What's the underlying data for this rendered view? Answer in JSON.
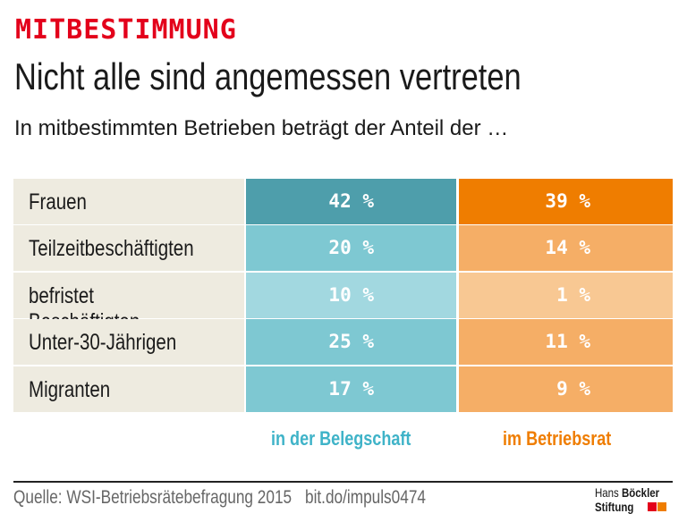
{
  "kicker": "MITBESTIMMUNG",
  "title": "Nicht alle sind angemessen vertreten",
  "subtitle": "In mitbestimmten Betrieben beträgt der Anteil der …",
  "chart_data": {
    "type": "table",
    "categories": [
      "Frauen",
      "Teilzeitbeschäftigten",
      "befristet Beschäftigten",
      "Unter-30-Jährigen",
      "Migranten"
    ],
    "series": [
      {
        "name": "in der Belegschaft",
        "values": [
          42,
          20,
          10,
          25,
          17
        ],
        "labels": [
          "42 %",
          "20 %",
          "10 %",
          "25 %",
          "17 %"
        ],
        "color": "#7ec8d2"
      },
      {
        "name": "im Betriebsrat",
        "values": [
          39,
          14,
          1,
          11,
          9
        ],
        "labels": [
          "39 %",
          "14 %",
          "1 %",
          "11 %",
          "9 %"
        ],
        "color": "#f5ae66"
      }
    ]
  },
  "colors": {
    "kicker": "#e3001b",
    "teal_dark": "#4e9eab",
    "teal": "#7ec8d2",
    "teal_light": "#a2d8e0",
    "orange_dark": "#ef7d00",
    "orange": "#f5ae66",
    "orange_light": "#f8c893",
    "label_bg": "#eeebe0",
    "legend_teal": "#3fb3c8",
    "legend_orange": "#ef7d00"
  },
  "footer": {
    "source": "Quelle: WSI-Betriebsrätebefragung 2015",
    "link": "bit.do/impuls0474",
    "logo_line1_a": "Hans ",
    "logo_line1_b": "Böckler",
    "logo_line2": "Stiftung"
  }
}
